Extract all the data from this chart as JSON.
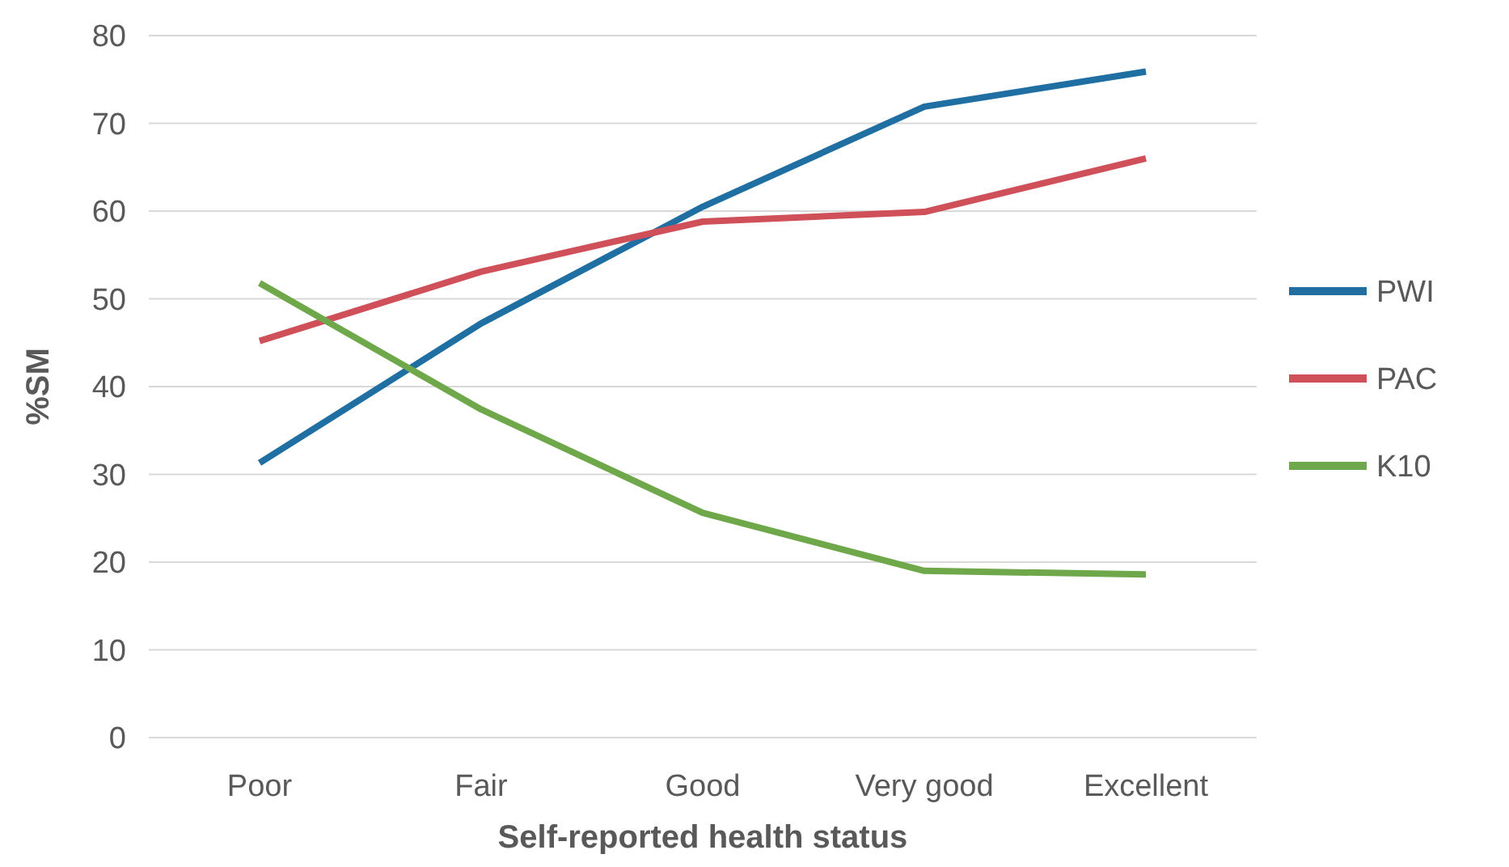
{
  "chart_data": {
    "type": "line",
    "xlabel": "Self-reported health status",
    "ylabel": "%SM",
    "categories": [
      "Poor",
      "Fair",
      "Good",
      "Very good",
      "Excellent"
    ],
    "series": [
      {
        "name": "PWI",
        "color": "#1f6fa3",
        "values": [
          31.3,
          47.2,
          60.5,
          71.9,
          75.9
        ]
      },
      {
        "name": "PAC",
        "color": "#cf5059",
        "values": [
          45.2,
          53.1,
          58.8,
          59.9,
          66.0
        ]
      },
      {
        "name": "K10",
        "color": "#6ea84a",
        "values": [
          51.8,
          37.4,
          25.6,
          19.0,
          18.6
        ]
      }
    ],
    "ylim": [
      0,
      80
    ],
    "yticks": [
      0,
      10,
      20,
      30,
      40,
      50,
      60,
      70,
      80
    ],
    "grid": "y",
    "legend": "right",
    "marker": "none",
    "line_style": "solid"
  }
}
